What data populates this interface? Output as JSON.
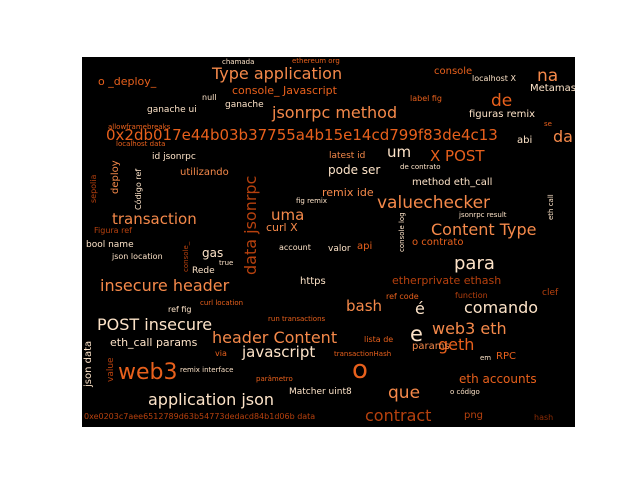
{
  "word_cloud": {
    "background": "#000000",
    "colors": {
      "light": "#fde3c8",
      "mid": "#f5894a",
      "orange": "#e8601c",
      "dark": "#b7410e",
      "deep": "#8c2b05"
    },
    "words": [
      "Type application",
      "0x2db017e44b03b37755a4b15e14cd799f83de4c13",
      "jsonrpc method",
      "insecure header",
      "application json",
      "web3",
      "o",
      "valuechecker",
      "Content Type",
      "X POST",
      "POST insecure",
      "header Content",
      "comando",
      "web3 eth",
      "geth",
      "para",
      "contract",
      "que",
      "data jsonrpc",
      "bash",
      "javascript",
      "transaction",
      "de",
      "na",
      "um",
      "da",
      "e",
      "é",
      "uma",
      "console_ Javascript",
      "o _deploy_",
      "pode ser",
      "remix ide",
      "etherprivate ethash",
      "eth accounts",
      "eth_call params",
      "curl X",
      "gas",
      "https",
      "method eth_call",
      "figuras remix",
      "ganache ui",
      "ganache",
      "utilizando",
      "deploy",
      "Metamask",
      "id jsonrpc",
      "latest id",
      "console",
      "localhost X",
      "json data",
      "bool name",
      "Rede",
      "valor",
      "api",
      "account",
      "o contrato",
      "params",
      "png",
      "Matcher uint8",
      "RPC",
      "clef",
      "function",
      "chamada",
      "ethereum org",
      "null",
      "label fig",
      "allowframebreaks",
      "localhost data",
      "abi",
      "se",
      "sepolia",
      "Código ref",
      "fig remix",
      "jsonrpc result",
      "eth call",
      "console log",
      "Figura ref",
      "json location",
      "true",
      "console_",
      "ref fig",
      "curl location",
      "ref code",
      "run transactions",
      "lista de",
      "transactionHash",
      "em",
      "value",
      "via",
      "remix interface",
      "parâmetro",
      "o código",
      "0xe0203c7aee6512789d63b54773dedacd84b1d06b data",
      "hash",
      "de contrato"
    ]
  }
}
